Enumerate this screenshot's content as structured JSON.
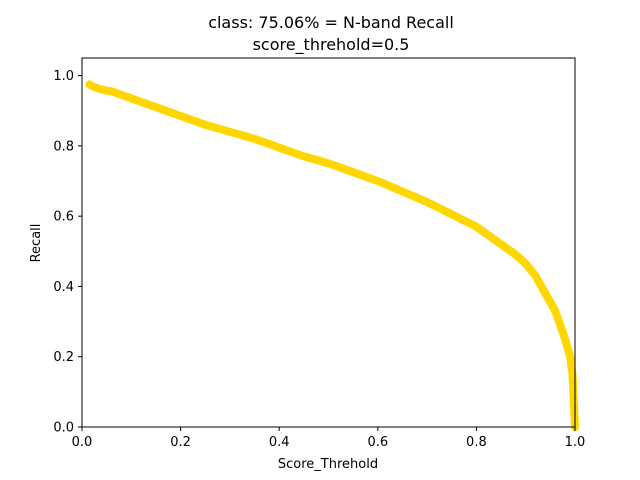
{
  "chart_data": {
    "type": "line",
    "title": "class: 75.06% = N-band Recall",
    "subtitle": "score_threhold=0.5",
    "xlabel": "Score_Threhold",
    "ylabel": "Recall",
    "xlim": [
      0.0,
      1.0
    ],
    "ylim": [
      0.0,
      1.05
    ],
    "grid": false,
    "x_ticks": [
      0.0,
      0.2,
      0.4,
      0.6,
      0.8,
      1.0
    ],
    "x_tick_labels": [
      "0.0",
      "0.2",
      "0.4",
      "0.6",
      "0.8",
      "1.0"
    ],
    "y_ticks": [
      0.0,
      0.2,
      0.4,
      0.6,
      0.8,
      1.0
    ],
    "y_tick_labels": [
      "0.0",
      "0.2",
      "0.4",
      "0.6",
      "0.8",
      "1.0"
    ],
    "series": [
      {
        "color": "#FFD700",
        "x": [
          0.015,
          0.02,
          0.04,
          0.06,
          0.08,
          0.1,
          0.15,
          0.2,
          0.25,
          0.3,
          0.35,
          0.4,
          0.45,
          0.5,
          0.55,
          0.6,
          0.65,
          0.7,
          0.75,
          0.8,
          0.85,
          0.88,
          0.9,
          0.92,
          0.94,
          0.96,
          0.97,
          0.98,
          0.99,
          0.995,
          1.0
        ],
        "y": [
          0.975,
          0.97,
          0.96,
          0.955,
          0.945,
          0.935,
          0.91,
          0.885,
          0.86,
          0.84,
          0.82,
          0.795,
          0.77,
          0.75,
          0.725,
          0.7,
          0.67,
          0.64,
          0.605,
          0.57,
          0.52,
          0.49,
          0.465,
          0.43,
          0.38,
          0.33,
          0.29,
          0.25,
          0.2,
          0.15,
          0.0
        ]
      }
    ]
  }
}
